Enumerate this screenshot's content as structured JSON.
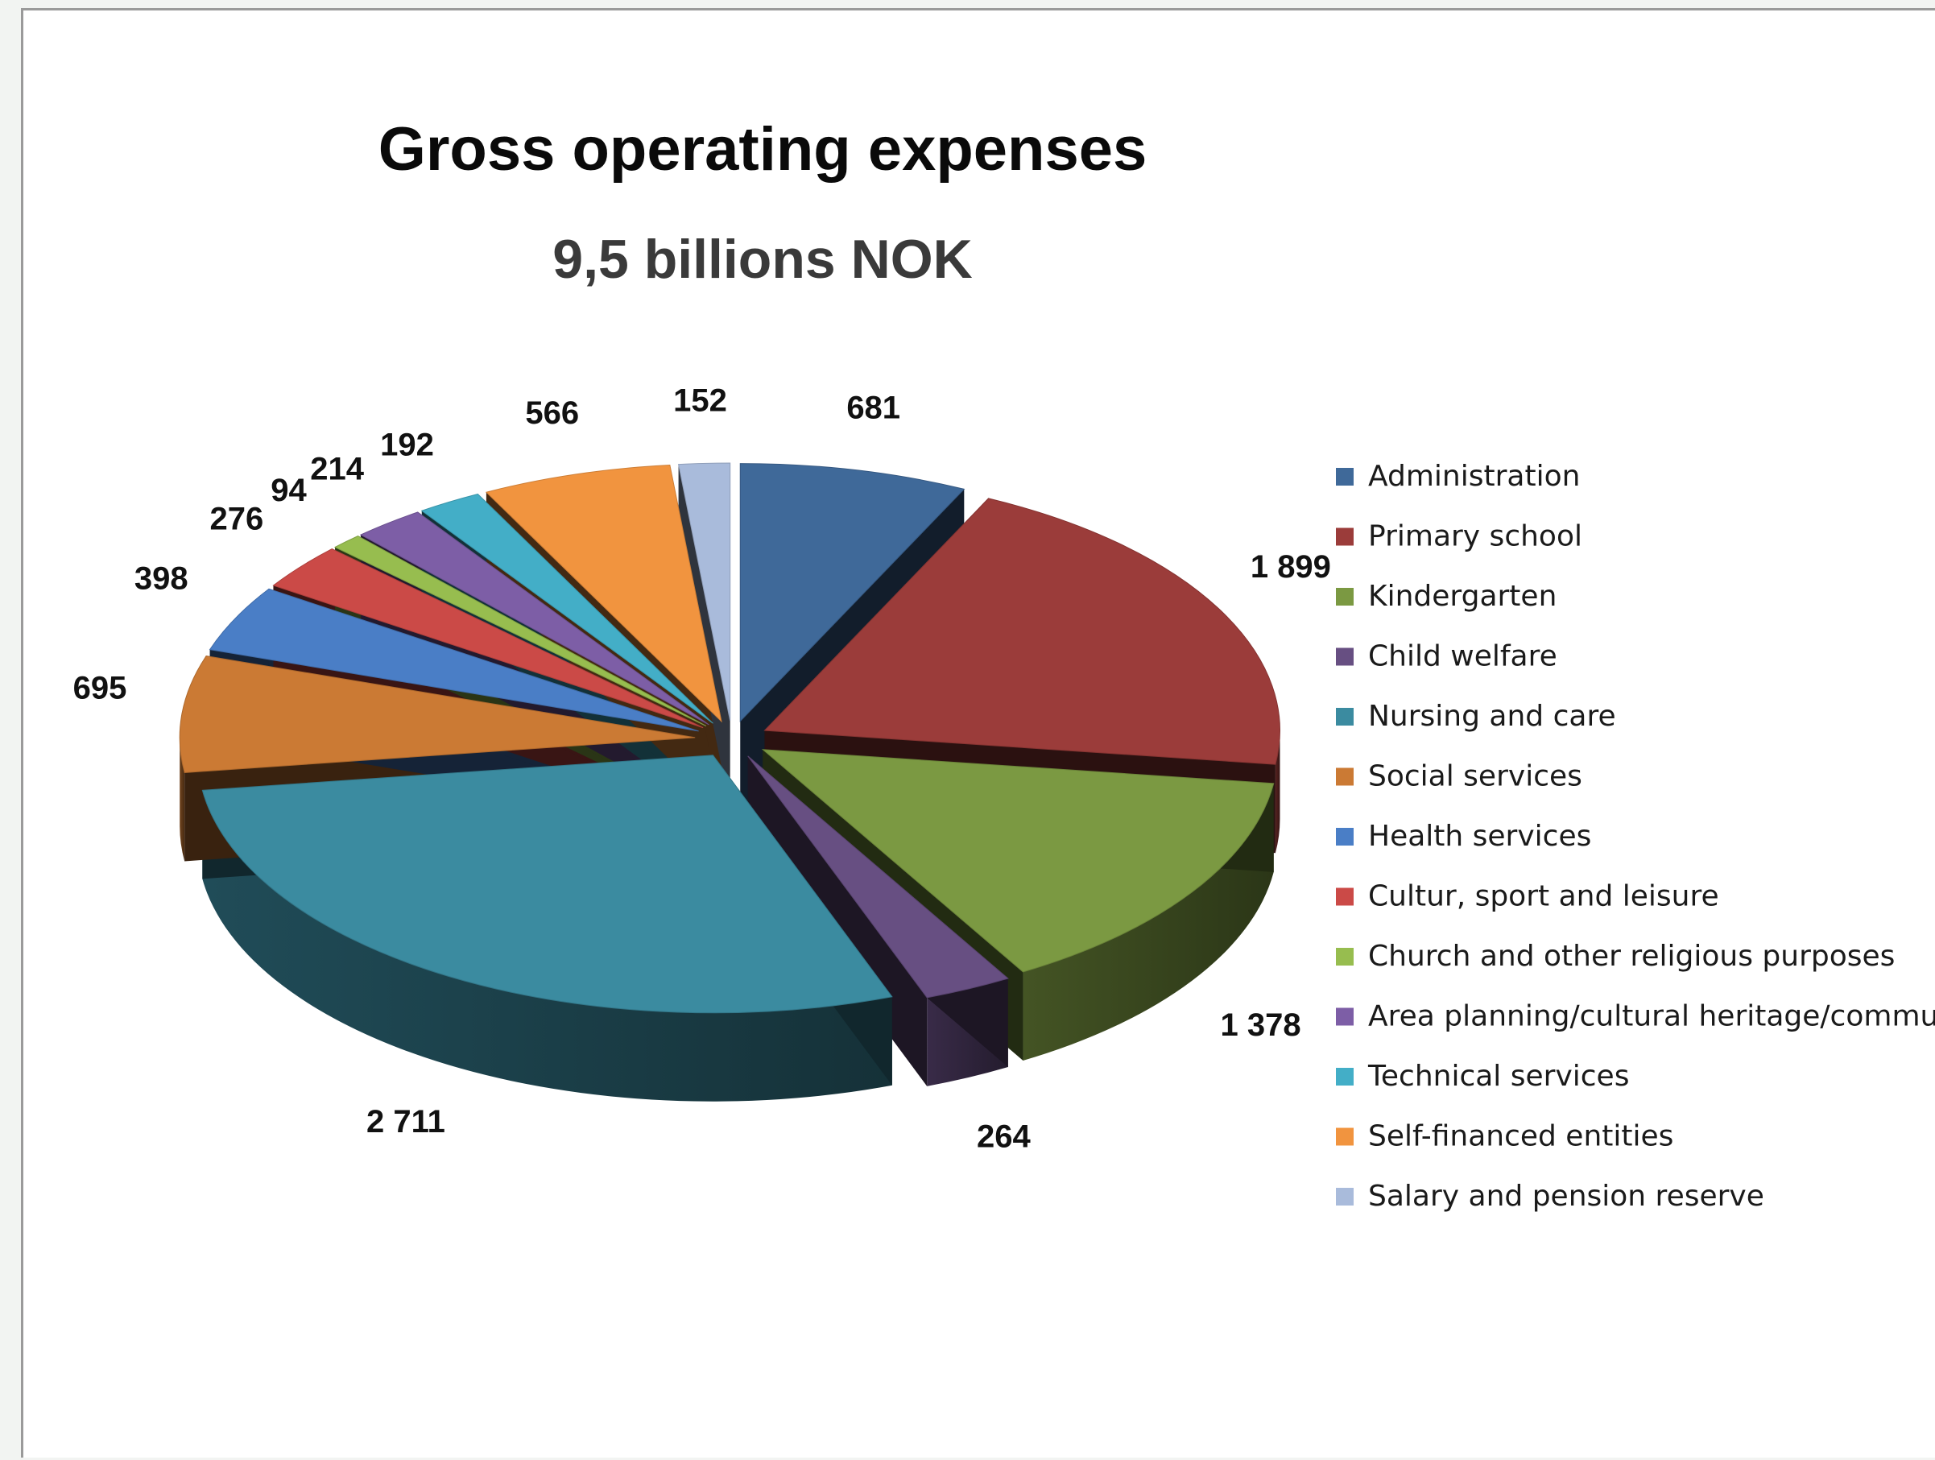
{
  "chart_data": {
    "type": "pie",
    "title": "Gross operating expenses",
    "subtitle": "9,5 billions NOK",
    "legend_position": "right",
    "three_d": true,
    "exploded": true,
    "slices": [
      {
        "name": "Administration",
        "value": 681,
        "label": "681",
        "color": "#3f6999"
      },
      {
        "name": "Primary school",
        "value": 1899,
        "label": "1 899",
        "color": "#9b3c3a"
      },
      {
        "name": "Kindergarten",
        "value": 1378,
        "label": "1 378",
        "color": "#7b9942"
      },
      {
        "name": "Child welfare",
        "value": 264,
        "label": "264",
        "color": "#674f82"
      },
      {
        "name": "Nursing and care",
        "value": 2711,
        "label": "2 711",
        "color": "#3b8ba0"
      },
      {
        "name": "Social services",
        "value": 695,
        "label": "695",
        "color": "#cb7a34"
      },
      {
        "name": "Health services",
        "value": 398,
        "label": "398",
        "color": "#4a7ec6"
      },
      {
        "name": "Cultur, sport and leisure",
        "value": 276,
        "label": "276",
        "color": "#cb4a47"
      },
      {
        "name": "Church and other religious purposes",
        "value": 94,
        "label": "94",
        "color": "#97bd4f"
      },
      {
        "name": "Area planning/cultural heritage/community",
        "value": 214,
        "label": "214",
        "color": "#7d5ea6"
      },
      {
        "name": "Technical services",
        "value": 192,
        "label": "192",
        "color": "#43aec7"
      },
      {
        "name": "Self-financed entities",
        "value": 566,
        "label": "566",
        "color": "#f1943f"
      },
      {
        "name": "Salary and pension reserve",
        "value": 152,
        "label": "152",
        "color": "#a9bbdb"
      }
    ]
  }
}
